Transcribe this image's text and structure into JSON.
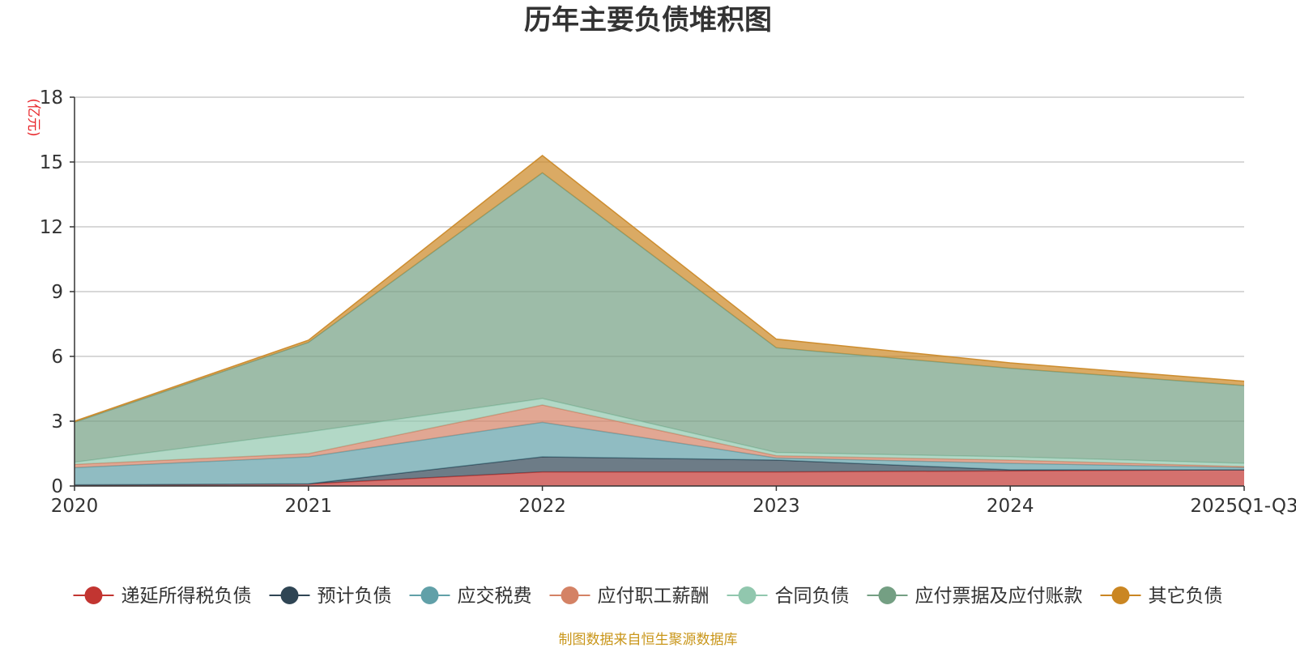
{
  "chart_data": {
    "type": "area",
    "title": "历年主要负债堆积图",
    "ylabel": "(亿元)",
    "xlabel": "",
    "categories": [
      "2020",
      "2021",
      "2022",
      "2023",
      "2024",
      "2025Q1-Q3"
    ],
    "ylim": [
      0,
      18
    ],
    "yticks": [
      0,
      3,
      6,
      9,
      12,
      15,
      18
    ],
    "stacked": true,
    "grid": true,
    "legend_position": "bottom",
    "series": [
      {
        "name": "递延所得税负债",
        "color": "#c23531",
        "values": [
          0.05,
          0.1,
          0.65,
          0.65,
          0.7,
          0.75
        ]
      },
      {
        "name": "预计负债",
        "color": "#2f4554",
        "values": [
          0.0,
          0.0,
          0.7,
          0.55,
          0.05,
          0.0
        ]
      },
      {
        "name": "应交税费",
        "color": "#61a0a8",
        "values": [
          0.8,
          1.25,
          1.6,
          0.1,
          0.3,
          0.1
        ]
      },
      {
        "name": "应付职工薪酬",
        "color": "#d48265",
        "values": [
          0.15,
          0.15,
          0.8,
          0.1,
          0.15,
          0.05
        ]
      },
      {
        "name": "合同负债",
        "color": "#91c7ae",
        "values": [
          0.1,
          1.0,
          0.3,
          0.15,
          0.15,
          0.15
        ]
      },
      {
        "name": "应付票据及应付账款",
        "color": "#749f83",
        "values": [
          1.85,
          4.15,
          10.45,
          4.85,
          4.1,
          3.6
        ]
      },
      {
        "name": "其它负债",
        "color": "#ca8622",
        "values": [
          0.05,
          0.1,
          0.8,
          0.4,
          0.25,
          0.2
        ]
      }
    ]
  },
  "footer": "制图数据来自恒生聚源数据库"
}
